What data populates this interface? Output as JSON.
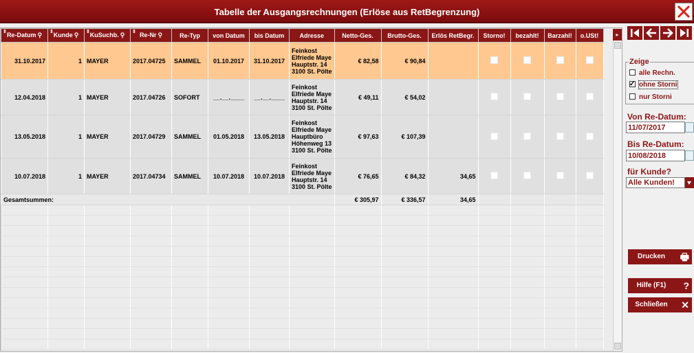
{
  "window": {
    "title": "Tabelle der Ausgangsrechnungen (Erlöse aus RetBegrenzung)"
  },
  "columns": [
    {
      "label": "Re-Datum",
      "sortable": true,
      "search": true
    },
    {
      "label": "Kunde",
      "sortable": true,
      "search": true
    },
    {
      "label": "KuSuchb.",
      "sortable": true,
      "search": true
    },
    {
      "label": "Re-Nr",
      "sortable": true,
      "search": true
    },
    {
      "label": "Re-Typ",
      "sortable": false,
      "search": false
    },
    {
      "label": "von Datum",
      "sortable": false,
      "search": false
    },
    {
      "label": "bis Datum",
      "sortable": false,
      "search": false
    },
    {
      "label": "Adresse",
      "sortable": false,
      "search": false
    },
    {
      "label": "Netto-Ges.",
      "sortable": false,
      "search": false
    },
    {
      "label": "Brutto-Ges.",
      "sortable": false,
      "search": false
    },
    {
      "label": "Erlös RetBegr.",
      "sortable": false,
      "search": false
    },
    {
      "label": "Storno!",
      "sortable": false,
      "search": false
    },
    {
      "label": "bezahlt!",
      "sortable": false,
      "search": false
    },
    {
      "label": "Barzahl!",
      "sortable": false,
      "search": false
    },
    {
      "label": "o.USt!",
      "sortable": false,
      "search": false
    }
  ],
  "rows": [
    {
      "re_datum": "31.10.2017",
      "kunde": "1",
      "kusuchb": "MAYER",
      "re_nr": "2017.04725",
      "re_typ": "SAMMEL",
      "von": "01.10.2017",
      "bis": "31.10.2017",
      "adresse": [
        "Feinkost",
        "Elfriede Maye",
        "Hauptstr. 14",
        "3100 St. Pölte"
      ],
      "netto": "€ 82,58",
      "brutto": "€ 90,84",
      "erloes": "",
      "selected": true
    },
    {
      "re_datum": "12.04.2018",
      "kunde": "1",
      "kusuchb": "MAYER",
      "re_nr": "2017.04726",
      "re_typ": "SOFORT",
      "von": "__.__.____",
      "bis": "__.__.____",
      "adresse": [
        "Feinkost",
        "Elfriede Maye",
        "Hauptstr. 14",
        "3100 St. Pölte"
      ],
      "netto": "€ 49,11",
      "brutto": "€ 54,02",
      "erloes": "",
      "selected": false
    },
    {
      "re_datum": "13.05.2018",
      "kunde": "1",
      "kusuchb": "MAYER",
      "re_nr": "2017.04729",
      "re_typ": "SAMMEL",
      "von": "01.05.2018",
      "bis": "13.05.2018",
      "adresse": [
        "Feinkost",
        "Elfriede Maye",
        "Hauptbüro",
        "Höhenweg 13",
        "3100 St. Pölte"
      ],
      "netto": "€ 97,63",
      "brutto": "€ 107,39",
      "erloes": "",
      "selected": false
    },
    {
      "re_datum": "10.07.2018",
      "kunde": "1",
      "kusuchb": "MAYER",
      "re_nr": "2017.04734",
      "re_typ": "SAMMEL",
      "von": "10.07.2018",
      "bis": "10.07.2018",
      "adresse": [
        "Feinkost",
        "Elfriede Maye",
        "Hauptstr. 14",
        "3100 St. Pölte"
      ],
      "netto": "€ 76,65",
      "brutto": "€ 84,32",
      "erloes": "34,65",
      "selected": false
    }
  ],
  "totals": {
    "label": "Gesamtsummen:",
    "netto": "€ 305,97",
    "brutto": "€ 336,57",
    "erloes": "34,65"
  },
  "filter": {
    "legend": "Zeige",
    "options": [
      {
        "label": "alle Rechn.",
        "checked": false
      },
      {
        "label": "ohne Storni",
        "checked": true
      },
      {
        "label": "nur Storni",
        "checked": false
      }
    ]
  },
  "von_datum": {
    "label": "Von Re-Datum:",
    "value": "11/07/2017"
  },
  "bis_datum": {
    "label": "Bis Re-Datum:",
    "value": "10/08/2018"
  },
  "kunde": {
    "label": "für Kunde?",
    "value": "Alle Kunden!"
  },
  "buttons": {
    "print": "Drucken",
    "help": "Hilfe (F1)",
    "close": "Schließen"
  },
  "colors": {
    "accent": "#8b1616",
    "selected_row": "#ffc890"
  },
  "icons": {
    "nav": [
      "first-icon",
      "prev-icon",
      "next-icon",
      "last-icon"
    ]
  }
}
